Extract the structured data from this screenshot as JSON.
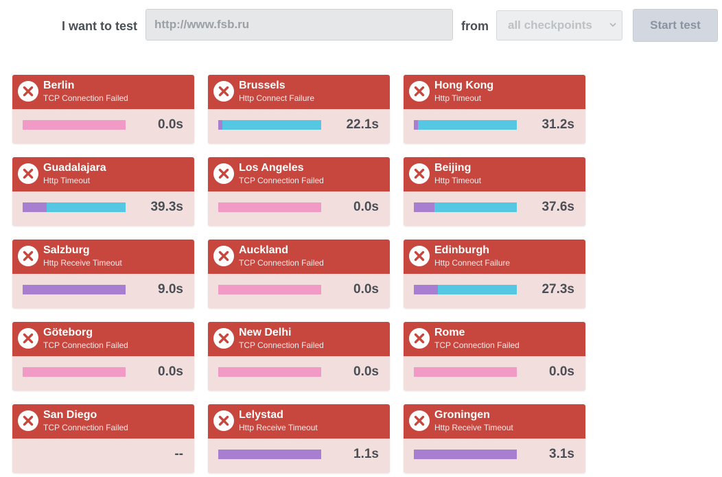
{
  "form": {
    "i_want_to_test_label": "I want to test",
    "url_value": "http://www.fsb.ru",
    "from_label": "from",
    "checkpoint_select_value": "all checkpoints",
    "start_button_label": "Start test"
  },
  "colors": {
    "card_header": "#c7473f",
    "card_body": "#f3dede",
    "connect_segment": "#a77ed0",
    "wait_segment": "#55c7e2",
    "failed_segment": "#f29ac6"
  },
  "checkpoints": [
    {
      "city": "Berlin",
      "status": "TCP Connection Failed",
      "time": "0.0s",
      "icon": "error-x-icon",
      "bar": [
        {
          "kind": "failed",
          "fraction": 1.0
        }
      ]
    },
    {
      "city": "Brussels",
      "status": "Http Connect Failure",
      "time": "22.1s",
      "icon": "error-x-icon",
      "bar": [
        {
          "kind": "connect",
          "fraction": 0.04
        },
        {
          "kind": "wait",
          "fraction": 0.96
        }
      ]
    },
    {
      "city": "Hong Kong",
      "status": "Http Timeout",
      "time": "31.2s",
      "icon": "error-x-icon",
      "bar": [
        {
          "kind": "connect",
          "fraction": 0.04
        },
        {
          "kind": "wait",
          "fraction": 0.96
        }
      ]
    },
    {
      "city": "Guadalajara",
      "status": "Http Timeout",
      "time": "39.3s",
      "icon": "error-x-icon",
      "bar": [
        {
          "kind": "connect",
          "fraction": 0.23
        },
        {
          "kind": "wait",
          "fraction": 0.77
        }
      ]
    },
    {
      "city": "Los Angeles",
      "status": "TCP Connection Failed",
      "time": "0.0s",
      "icon": "error-x-icon",
      "bar": [
        {
          "kind": "failed",
          "fraction": 1.0
        }
      ]
    },
    {
      "city": "Beijing",
      "status": "Http Timeout",
      "time": "37.6s",
      "icon": "error-x-icon",
      "bar": [
        {
          "kind": "connect",
          "fraction": 0.2
        },
        {
          "kind": "wait",
          "fraction": 0.8
        }
      ]
    },
    {
      "city": "Salzburg",
      "status": "Http Receive Timeout",
      "time": "9.0s",
      "icon": "error-x-icon",
      "bar": [
        {
          "kind": "connect",
          "fraction": 1.0
        }
      ]
    },
    {
      "city": "Auckland",
      "status": "TCP Connection Failed",
      "time": "0.0s",
      "icon": "error-x-icon",
      "bar": [
        {
          "kind": "failed",
          "fraction": 1.0
        }
      ]
    },
    {
      "city": "Edinburgh",
      "status": "Http Connect Failure",
      "time": "27.3s",
      "icon": "error-x-icon",
      "bar": [
        {
          "kind": "connect",
          "fraction": 0.23
        },
        {
          "kind": "wait",
          "fraction": 0.77
        }
      ]
    },
    {
      "city": "Göteborg",
      "status": "TCP Connection Failed",
      "time": "0.0s",
      "icon": "error-x-icon",
      "bar": [
        {
          "kind": "failed",
          "fraction": 1.0
        }
      ]
    },
    {
      "city": "New Delhi",
      "status": "TCP Connection Failed",
      "time": "0.0s",
      "icon": "error-x-icon",
      "bar": [
        {
          "kind": "failed",
          "fraction": 1.0
        }
      ]
    },
    {
      "city": "Rome",
      "status": "TCP Connection Failed",
      "time": "0.0s",
      "icon": "error-x-icon",
      "bar": [
        {
          "kind": "failed",
          "fraction": 1.0
        }
      ]
    },
    {
      "city": "San Diego",
      "status": "TCP Connection Failed",
      "time": "--",
      "icon": "error-x-icon",
      "bar": []
    },
    {
      "city": "Lelystad",
      "status": "Http Receive Timeout",
      "time": "1.1s",
      "icon": "error-x-icon",
      "bar": [
        {
          "kind": "connect",
          "fraction": 1.0
        }
      ]
    },
    {
      "city": "Groningen",
      "status": "Http Receive Timeout",
      "time": "3.1s",
      "icon": "error-x-icon",
      "bar": [
        {
          "kind": "connect",
          "fraction": 1.0
        }
      ]
    }
  ]
}
